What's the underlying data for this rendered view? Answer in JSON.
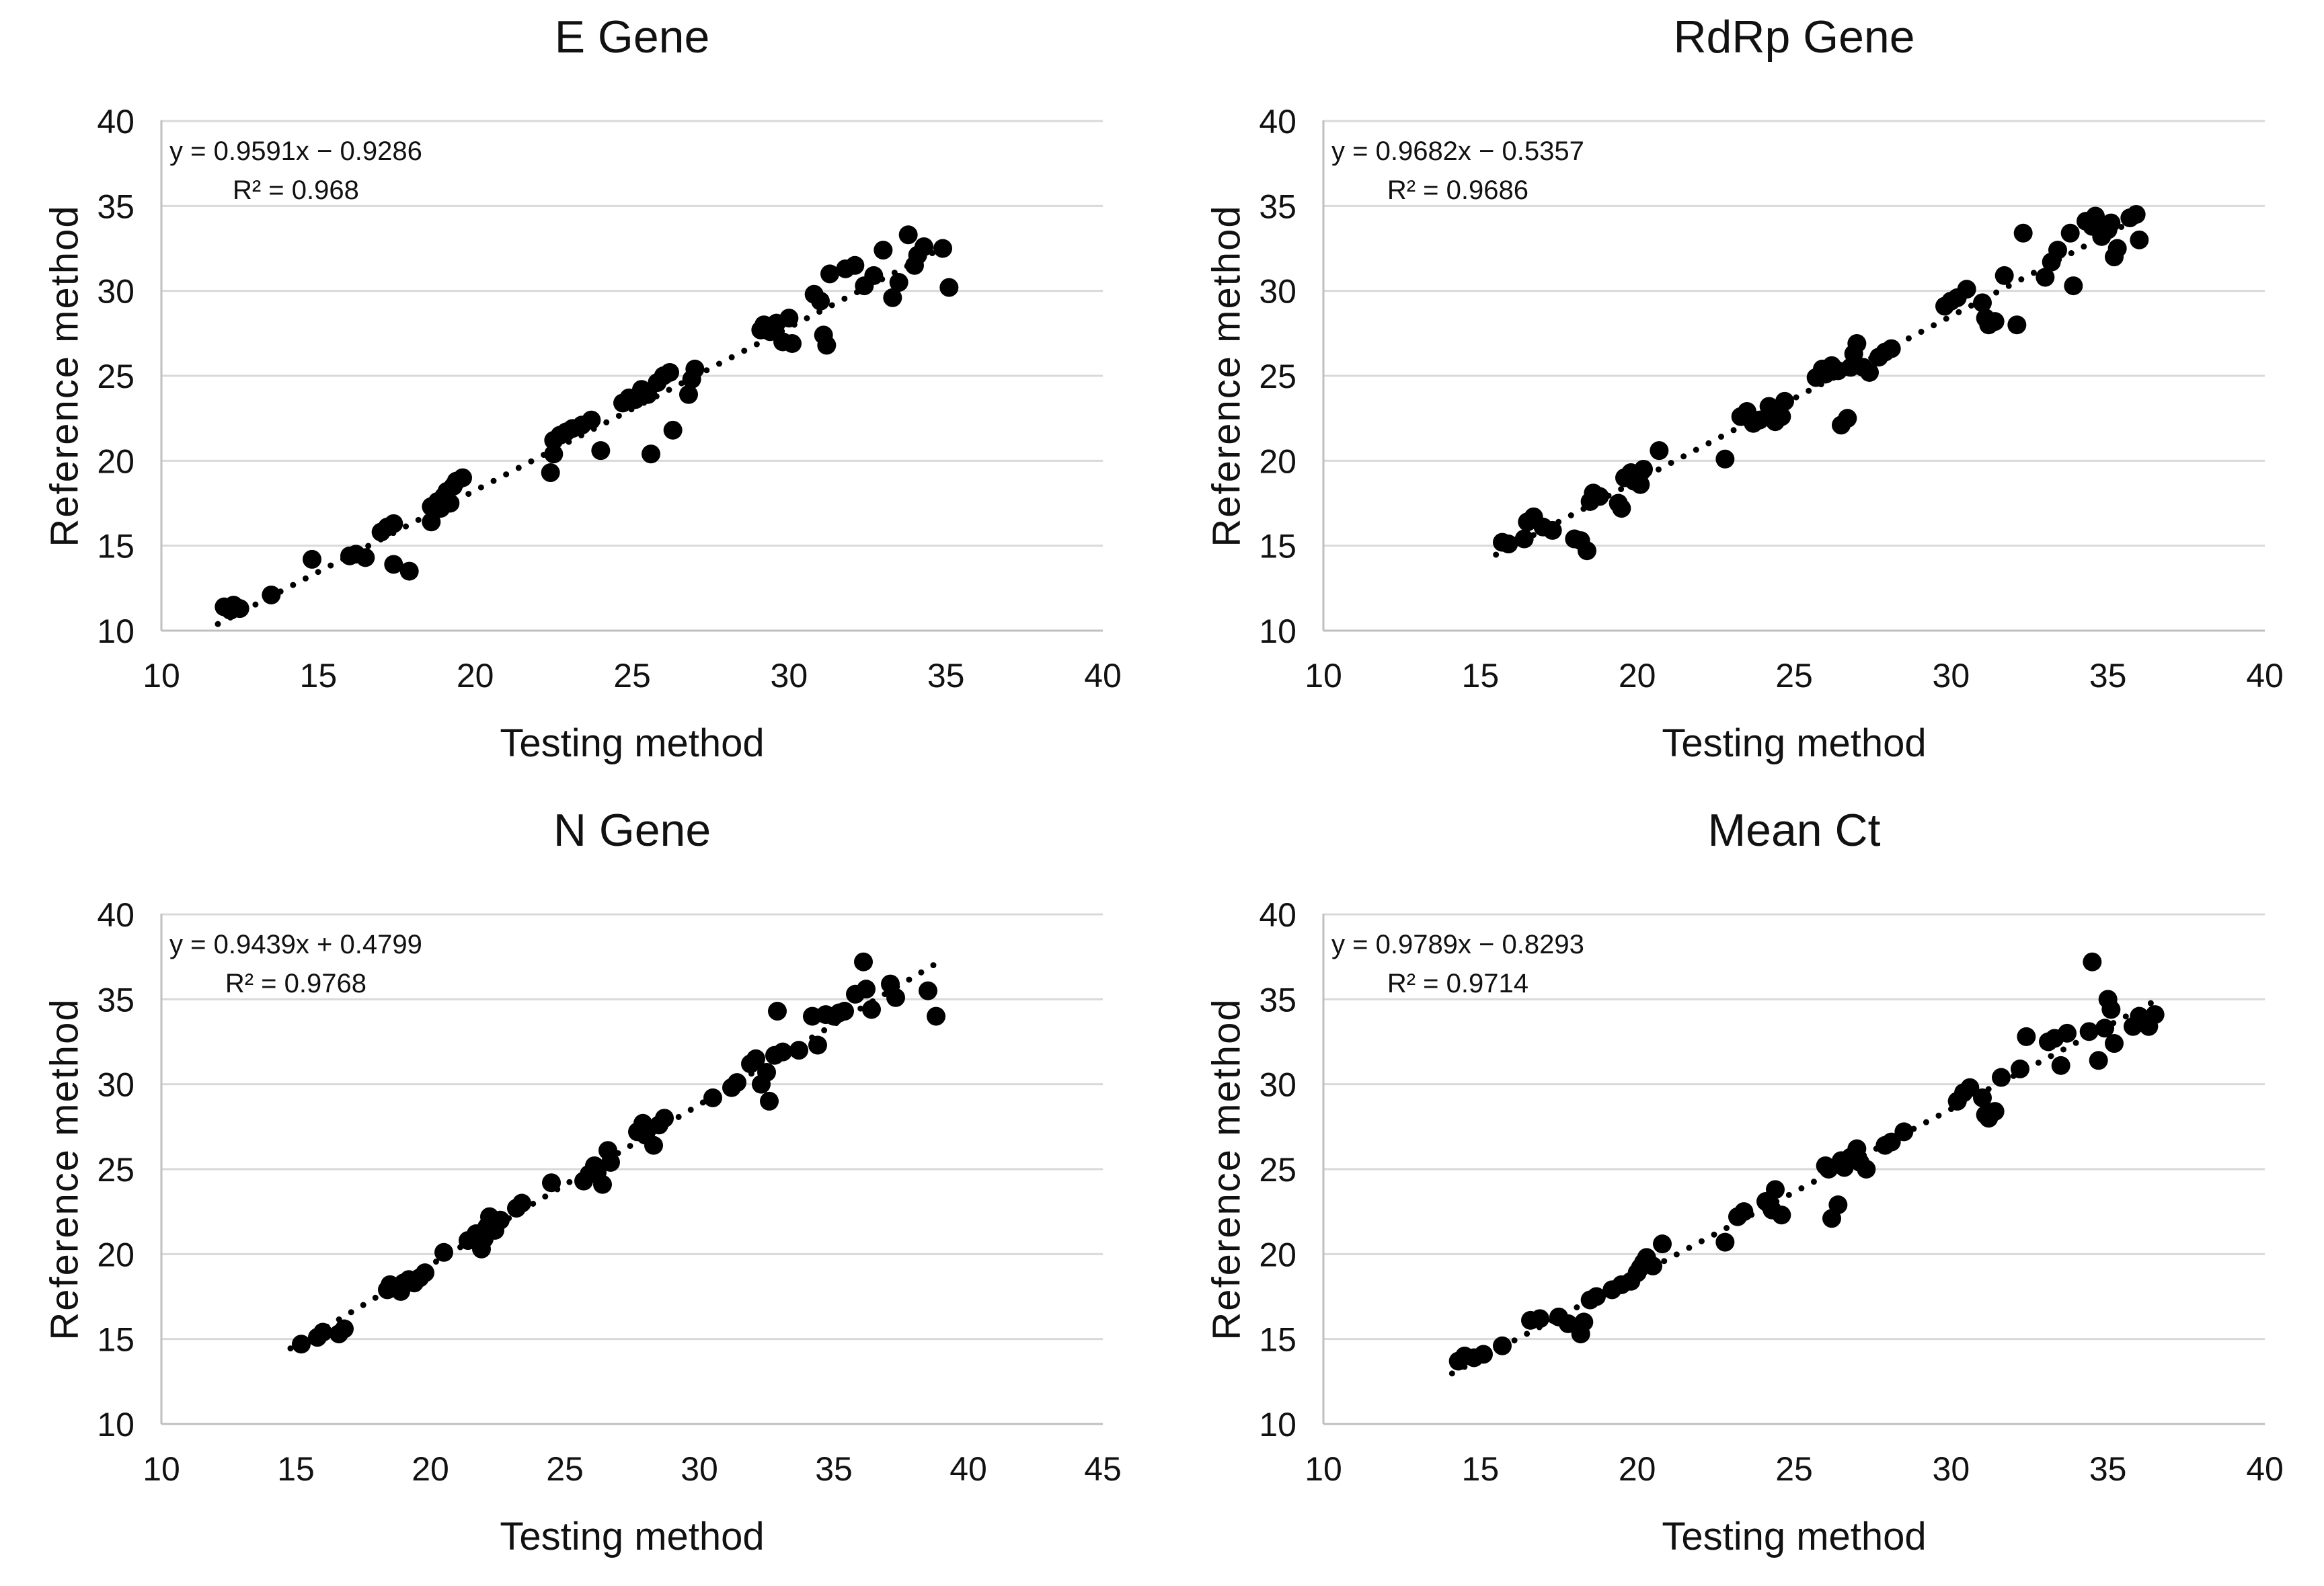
{
  "figure": {
    "background": "#ffffff",
    "text_color": "#111111",
    "gridline_color": "#d9d9d9",
    "axis_line_color": "#bfbfbf",
    "point_color": "#000000",
    "trendline_color": "#000000"
  },
  "chart_data": [
    {
      "type": "scatter",
      "title": "E Gene",
      "xlabel": "Testing method",
      "ylabel": "Reference method",
      "equation": "y = 0.9591x − 0.9286",
      "r_squared": "R² = 0.968",
      "xlim": [
        10,
        40
      ],
      "ylim": [
        10,
        40
      ],
      "xticks": [
        10,
        15,
        20,
        25,
        30,
        35,
        40
      ],
      "yticks": [
        10,
        15,
        20,
        25,
        30,
        35,
        40
      ],
      "grid": "horizontal",
      "legend": "none",
      "trendline": {
        "style": "dotted",
        "slope": 0.9591,
        "intercept": -0.9286,
        "x_start": 11.8,
        "x_end": 35.3
      },
      "points": [
        [
          12.0,
          11.4
        ],
        [
          12.2,
          11.2
        ],
        [
          12.3,
          11.5
        ],
        [
          12.5,
          11.3
        ],
        [
          13.5,
          12.1
        ],
        [
          14.8,
          14.2
        ],
        [
          16.0,
          14.4
        ],
        [
          16.2,
          14.5
        ],
        [
          16.5,
          14.3
        ],
        [
          17.0,
          15.8
        ],
        [
          17.2,
          16.1
        ],
        [
          17.4,
          16.3
        ],
        [
          17.4,
          13.9
        ],
        [
          17.9,
          13.5
        ],
        [
          18.6,
          16.4
        ],
        [
          18.6,
          17.3
        ],
        [
          18.8,
          17.6
        ],
        [
          18.9,
          17.2
        ],
        [
          19.0,
          17.9
        ],
        [
          19.1,
          18.2
        ],
        [
          19.2,
          17.5
        ],
        [
          19.3,
          18.5
        ],
        [
          19.4,
          18.8
        ],
        [
          19.6,
          19.0
        ],
        [
          22.4,
          19.3
        ],
        [
          22.5,
          20.4
        ],
        [
          22.5,
          21.2
        ],
        [
          22.7,
          21.5
        ],
        [
          22.9,
          21.7
        ],
        [
          23.1,
          21.9
        ],
        [
          23.4,
          22.1
        ],
        [
          23.7,
          22.4
        ],
        [
          24.0,
          20.6
        ],
        [
          24.7,
          23.4
        ],
        [
          24.9,
          23.7
        ],
        [
          25.1,
          23.6
        ],
        [
          25.3,
          24.2
        ],
        [
          25.5,
          23.9
        ],
        [
          25.6,
          20.4
        ],
        [
          25.8,
          24.6
        ],
        [
          26.0,
          25.0
        ],
        [
          26.2,
          25.2
        ],
        [
          26.3,
          21.8
        ],
        [
          26.8,
          23.9
        ],
        [
          26.9,
          24.8
        ],
        [
          27.0,
          25.4
        ],
        [
          29.1,
          27.7
        ],
        [
          29.2,
          28.0
        ],
        [
          29.4,
          27.6
        ],
        [
          29.6,
          28.1
        ],
        [
          29.8,
          27.0
        ],
        [
          30.0,
          28.4
        ],
        [
          30.1,
          26.9
        ],
        [
          30.8,
          29.8
        ],
        [
          31.0,
          29.4
        ],
        [
          31.1,
          27.4
        ],
        [
          31.2,
          26.8
        ],
        [
          31.3,
          31.0
        ],
        [
          31.8,
          31.3
        ],
        [
          32.1,
          31.5
        ],
        [
          32.4,
          30.3
        ],
        [
          32.7,
          30.9
        ],
        [
          33.0,
          32.4
        ],
        [
          33.3,
          29.6
        ],
        [
          33.5,
          30.5
        ],
        [
          33.8,
          33.3
        ],
        [
          34.0,
          31.5
        ],
        [
          34.1,
          32.1
        ],
        [
          34.3,
          32.6
        ],
        [
          34.9,
          32.5
        ],
        [
          35.1,
          30.2
        ]
      ]
    },
    {
      "type": "scatter",
      "title": "RdRp Gene",
      "xlabel": "Testing method",
      "ylabel": "Reference method",
      "equation": "y = 0.9682x − 0.5357",
      "r_squared": "R² = 0.9686",
      "xlim": [
        10,
        40
      ],
      "ylim": [
        10,
        40
      ],
      "xticks": [
        10,
        15,
        20,
        25,
        30,
        35,
        40
      ],
      "yticks": [
        10,
        15,
        20,
        25,
        30,
        35,
        40
      ],
      "grid": "horizontal",
      "legend": "none",
      "trendline": {
        "style": "dotted",
        "slope": 0.9682,
        "intercept": -0.5357,
        "x_start": 15.5,
        "x_end": 36.1
      },
      "points": [
        [
          15.7,
          15.2
        ],
        [
          15.9,
          15.1
        ],
        [
          16.4,
          15.4
        ],
        [
          16.5,
          16.4
        ],
        [
          16.7,
          16.7
        ],
        [
          17.0,
          16.1
        ],
        [
          17.3,
          15.9
        ],
        [
          18.0,
          15.4
        ],
        [
          18.2,
          15.3
        ],
        [
          18.4,
          14.7
        ],
        [
          18.5,
          17.6
        ],
        [
          18.6,
          18.1
        ],
        [
          18.8,
          17.9
        ],
        [
          19.4,
          17.5
        ],
        [
          19.5,
          17.2
        ],
        [
          19.6,
          19.0
        ],
        [
          19.8,
          19.3
        ],
        [
          19.9,
          18.8
        ],
        [
          20.0,
          19.2
        ],
        [
          20.1,
          18.6
        ],
        [
          20.2,
          19.5
        ],
        [
          20.7,
          20.6
        ],
        [
          22.8,
          20.1
        ],
        [
          23.3,
          22.6
        ],
        [
          23.5,
          22.9
        ],
        [
          23.7,
          22.2
        ],
        [
          23.9,
          22.4
        ],
        [
          24.2,
          23.2
        ],
        [
          24.4,
          22.3
        ],
        [
          24.6,
          22.6
        ],
        [
          24.7,
          23.5
        ],
        [
          25.7,
          24.9
        ],
        [
          25.9,
          25.4
        ],
        [
          26.0,
          25.1
        ],
        [
          26.2,
          25.6
        ],
        [
          26.4,
          25.3
        ],
        [
          26.5,
          22.1
        ],
        [
          26.7,
          22.5
        ],
        [
          26.8,
          25.5
        ],
        [
          26.9,
          26.3
        ],
        [
          27.0,
          26.9
        ],
        [
          27.2,
          25.5
        ],
        [
          27.4,
          25.2
        ],
        [
          27.7,
          26.1
        ],
        [
          27.9,
          26.4
        ],
        [
          28.1,
          26.6
        ],
        [
          29.8,
          29.1
        ],
        [
          30.0,
          29.4
        ],
        [
          30.2,
          29.6
        ],
        [
          30.5,
          30.1
        ],
        [
          31.0,
          29.3
        ],
        [
          31.1,
          28.4
        ],
        [
          31.2,
          28.0
        ],
        [
          31.4,
          28.2
        ],
        [
          31.7,
          30.9
        ],
        [
          32.1,
          28.0
        ],
        [
          32.3,
          33.4
        ],
        [
          33.0,
          30.8
        ],
        [
          33.2,
          31.7
        ],
        [
          33.4,
          32.4
        ],
        [
          33.8,
          33.4
        ],
        [
          33.9,
          30.3
        ],
        [
          34.3,
          34.1
        ],
        [
          34.5,
          33.8
        ],
        [
          34.6,
          34.4
        ],
        [
          34.8,
          33.2
        ],
        [
          35.0,
          33.6
        ],
        [
          35.1,
          34.0
        ],
        [
          35.2,
          32.0
        ],
        [
          35.3,
          32.5
        ],
        [
          35.7,
          34.3
        ],
        [
          35.9,
          34.5
        ],
        [
          36.0,
          33.0
        ]
      ]
    },
    {
      "type": "scatter",
      "title": "N Gene",
      "xlabel": "Testing method",
      "ylabel": "Reference method",
      "equation": "y = 0.9439x + 0.4799",
      "r_squared": "R² = 0.9768",
      "xlim": [
        10,
        45
      ],
      "ylim": [
        10,
        40
      ],
      "xticks": [
        10,
        15,
        20,
        25,
        30,
        35,
        40,
        45
      ],
      "yticks": [
        10,
        15,
        20,
        25,
        30,
        35,
        40
      ],
      "grid": "horizontal",
      "legend": "none",
      "trendline": {
        "style": "dotted",
        "slope": 0.9439,
        "intercept": 0.4799,
        "x_start": 14.8,
        "x_end": 39.0
      },
      "points": [
        [
          15.2,
          14.7
        ],
        [
          15.8,
          15.1
        ],
        [
          16.0,
          15.4
        ],
        [
          16.6,
          15.3
        ],
        [
          16.8,
          15.6
        ],
        [
          18.4,
          17.9
        ],
        [
          18.5,
          18.2
        ],
        [
          18.7,
          18.0
        ],
        [
          18.9,
          17.8
        ],
        [
          19.0,
          18.3
        ],
        [
          19.2,
          18.5
        ],
        [
          19.4,
          18.3
        ],
        [
          19.6,
          18.6
        ],
        [
          19.8,
          18.9
        ],
        [
          20.5,
          20.1
        ],
        [
          21.4,
          20.8
        ],
        [
          21.7,
          21.2
        ],
        [
          21.9,
          20.3
        ],
        [
          22.0,
          20.9
        ],
        [
          22.1,
          21.6
        ],
        [
          22.2,
          22.2
        ],
        [
          22.4,
          21.4
        ],
        [
          22.6,
          22.0
        ],
        [
          23.2,
          22.7
        ],
        [
          23.4,
          23.0
        ],
        [
          24.5,
          24.2
        ],
        [
          25.7,
          24.3
        ],
        [
          25.9,
          24.7
        ],
        [
          26.1,
          25.2
        ],
        [
          26.2,
          24.8
        ],
        [
          26.4,
          24.1
        ],
        [
          26.6,
          26.1
        ],
        [
          26.7,
          25.4
        ],
        [
          27.7,
          27.2
        ],
        [
          27.9,
          27.7
        ],
        [
          28.0,
          27.0
        ],
        [
          28.1,
          27.4
        ],
        [
          28.3,
          26.4
        ],
        [
          28.5,
          27.6
        ],
        [
          28.7,
          28.0
        ],
        [
          30.5,
          29.2
        ],
        [
          31.2,
          29.8
        ],
        [
          31.4,
          30.1
        ],
        [
          31.9,
          31.2
        ],
        [
          32.1,
          31.5
        ],
        [
          32.3,
          30.0
        ],
        [
          32.5,
          30.7
        ],
        [
          32.6,
          29.0
        ],
        [
          32.8,
          31.7
        ],
        [
          32.9,
          34.3
        ],
        [
          33.1,
          31.9
        ],
        [
          33.7,
          32.0
        ],
        [
          34.2,
          34.0
        ],
        [
          34.4,
          32.3
        ],
        [
          34.7,
          34.1
        ],
        [
          35.0,
          34.0
        ],
        [
          35.2,
          34.2
        ],
        [
          35.4,
          34.3
        ],
        [
          35.8,
          35.3
        ],
        [
          36.1,
          37.2
        ],
        [
          36.2,
          35.6
        ],
        [
          36.4,
          34.4
        ],
        [
          37.1,
          35.9
        ],
        [
          37.3,
          35.1
        ],
        [
          38.5,
          35.5
        ],
        [
          38.8,
          34.0
        ]
      ]
    },
    {
      "type": "scatter",
      "title": "Mean Ct",
      "xlabel": "Testing method",
      "ylabel": "Reference method",
      "equation": "y = 0.9789x − 0.8293",
      "r_squared": "R² = 0.9714",
      "xlim": [
        10,
        40
      ],
      "ylim": [
        10,
        40
      ],
      "xticks": [
        10,
        15,
        20,
        25,
        30,
        35,
        40
      ],
      "yticks": [
        10,
        15,
        20,
        25,
        30,
        35,
        40
      ],
      "grid": "horizontal",
      "legend": "none",
      "trendline": {
        "style": "dotted",
        "slope": 0.9789,
        "intercept": -0.8293,
        "x_start": 14.1,
        "x_end": 36.6
      },
      "points": [
        [
          14.3,
          13.7
        ],
        [
          14.5,
          14.0
        ],
        [
          14.8,
          13.9
        ],
        [
          15.1,
          14.1
        ],
        [
          15.7,
          14.6
        ],
        [
          16.6,
          16.1
        ],
        [
          16.9,
          16.2
        ],
        [
          17.5,
          16.3
        ],
        [
          17.8,
          15.9
        ],
        [
          18.2,
          15.3
        ],
        [
          18.3,
          16.0
        ],
        [
          18.5,
          17.3
        ],
        [
          18.7,
          17.5
        ],
        [
          19.2,
          17.9
        ],
        [
          19.5,
          18.2
        ],
        [
          19.8,
          18.4
        ],
        [
          20.0,
          18.9
        ],
        [
          20.1,
          19.2
        ],
        [
          20.2,
          19.5
        ],
        [
          20.3,
          19.8
        ],
        [
          20.5,
          19.3
        ],
        [
          20.8,
          20.6
        ],
        [
          22.8,
          20.7
        ],
        [
          23.2,
          22.2
        ],
        [
          23.4,
          22.5
        ],
        [
          24.1,
          23.1
        ],
        [
          24.3,
          22.6
        ],
        [
          24.4,
          23.8
        ],
        [
          24.6,
          22.3
        ],
        [
          26.0,
          25.2
        ],
        [
          26.1,
          25.0
        ],
        [
          26.2,
          22.1
        ],
        [
          26.4,
          22.9
        ],
        [
          26.5,
          25.5
        ],
        [
          26.6,
          25.1
        ],
        [
          26.8,
          25.7
        ],
        [
          27.0,
          26.2
        ],
        [
          27.1,
          25.4
        ],
        [
          27.3,
          25.0
        ],
        [
          27.9,
          26.4
        ],
        [
          28.1,
          26.6
        ],
        [
          28.5,
          27.2
        ],
        [
          30.2,
          29.0
        ],
        [
          30.4,
          29.5
        ],
        [
          30.6,
          29.8
        ],
        [
          31.0,
          29.2
        ],
        [
          31.1,
          28.2
        ],
        [
          31.2,
          28.0
        ],
        [
          31.4,
          28.4
        ],
        [
          31.6,
          30.4
        ],
        [
          32.2,
          30.9
        ],
        [
          32.4,
          32.8
        ],
        [
          33.1,
          32.5
        ],
        [
          33.3,
          32.7
        ],
        [
          33.5,
          31.1
        ],
        [
          33.7,
          33.0
        ],
        [
          34.4,
          33.1
        ],
        [
          34.5,
          37.2
        ],
        [
          34.7,
          31.4
        ],
        [
          34.9,
          33.3
        ],
        [
          35.0,
          35.0
        ],
        [
          35.1,
          34.4
        ],
        [
          35.2,
          32.4
        ],
        [
          35.8,
          33.4
        ],
        [
          36.0,
          34.0
        ],
        [
          36.2,
          33.8
        ],
        [
          36.3,
          33.4
        ],
        [
          36.5,
          34.1
        ]
      ]
    }
  ]
}
